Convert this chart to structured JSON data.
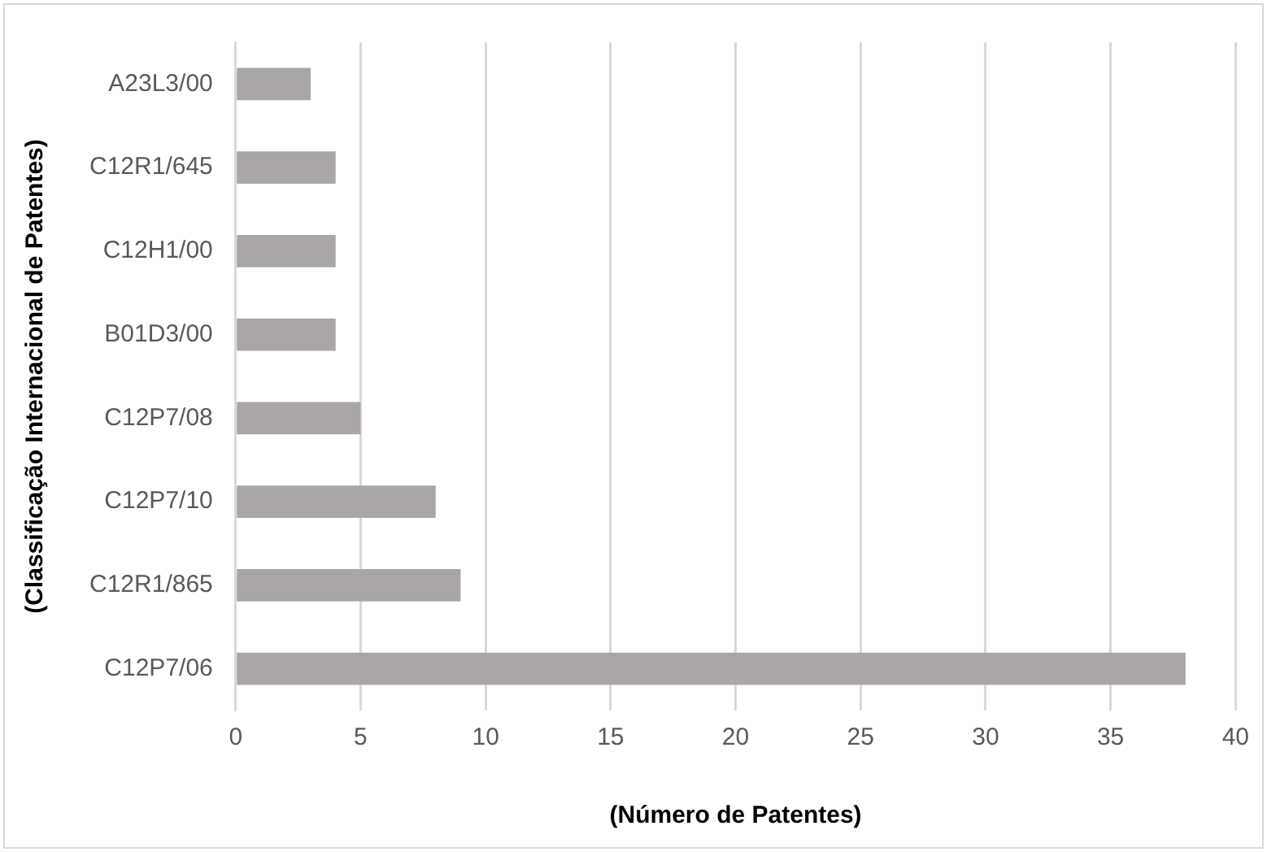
{
  "chart_data": {
    "type": "bar",
    "orientation": "horizontal",
    "xlabel": "(Número de Patentes)",
    "ylabel": "(Classificação Internacional de Patentes)",
    "categories": [
      "A23L3/00",
      "C12R1/645",
      "C12H1/00",
      "B01D3/00",
      "C12P7/08",
      "C12P7/10",
      "C12R1/865",
      "C12P7/06"
    ],
    "values": [
      3,
      4,
      4,
      4,
      5,
      8,
      9,
      38
    ],
    "color": "#aaa6a6",
    "xlim": [
      0,
      40
    ],
    "xticks": [
      0,
      5,
      10,
      15,
      20,
      25,
      30,
      35,
      40
    ],
    "grid": "x",
    "legend": false
  }
}
